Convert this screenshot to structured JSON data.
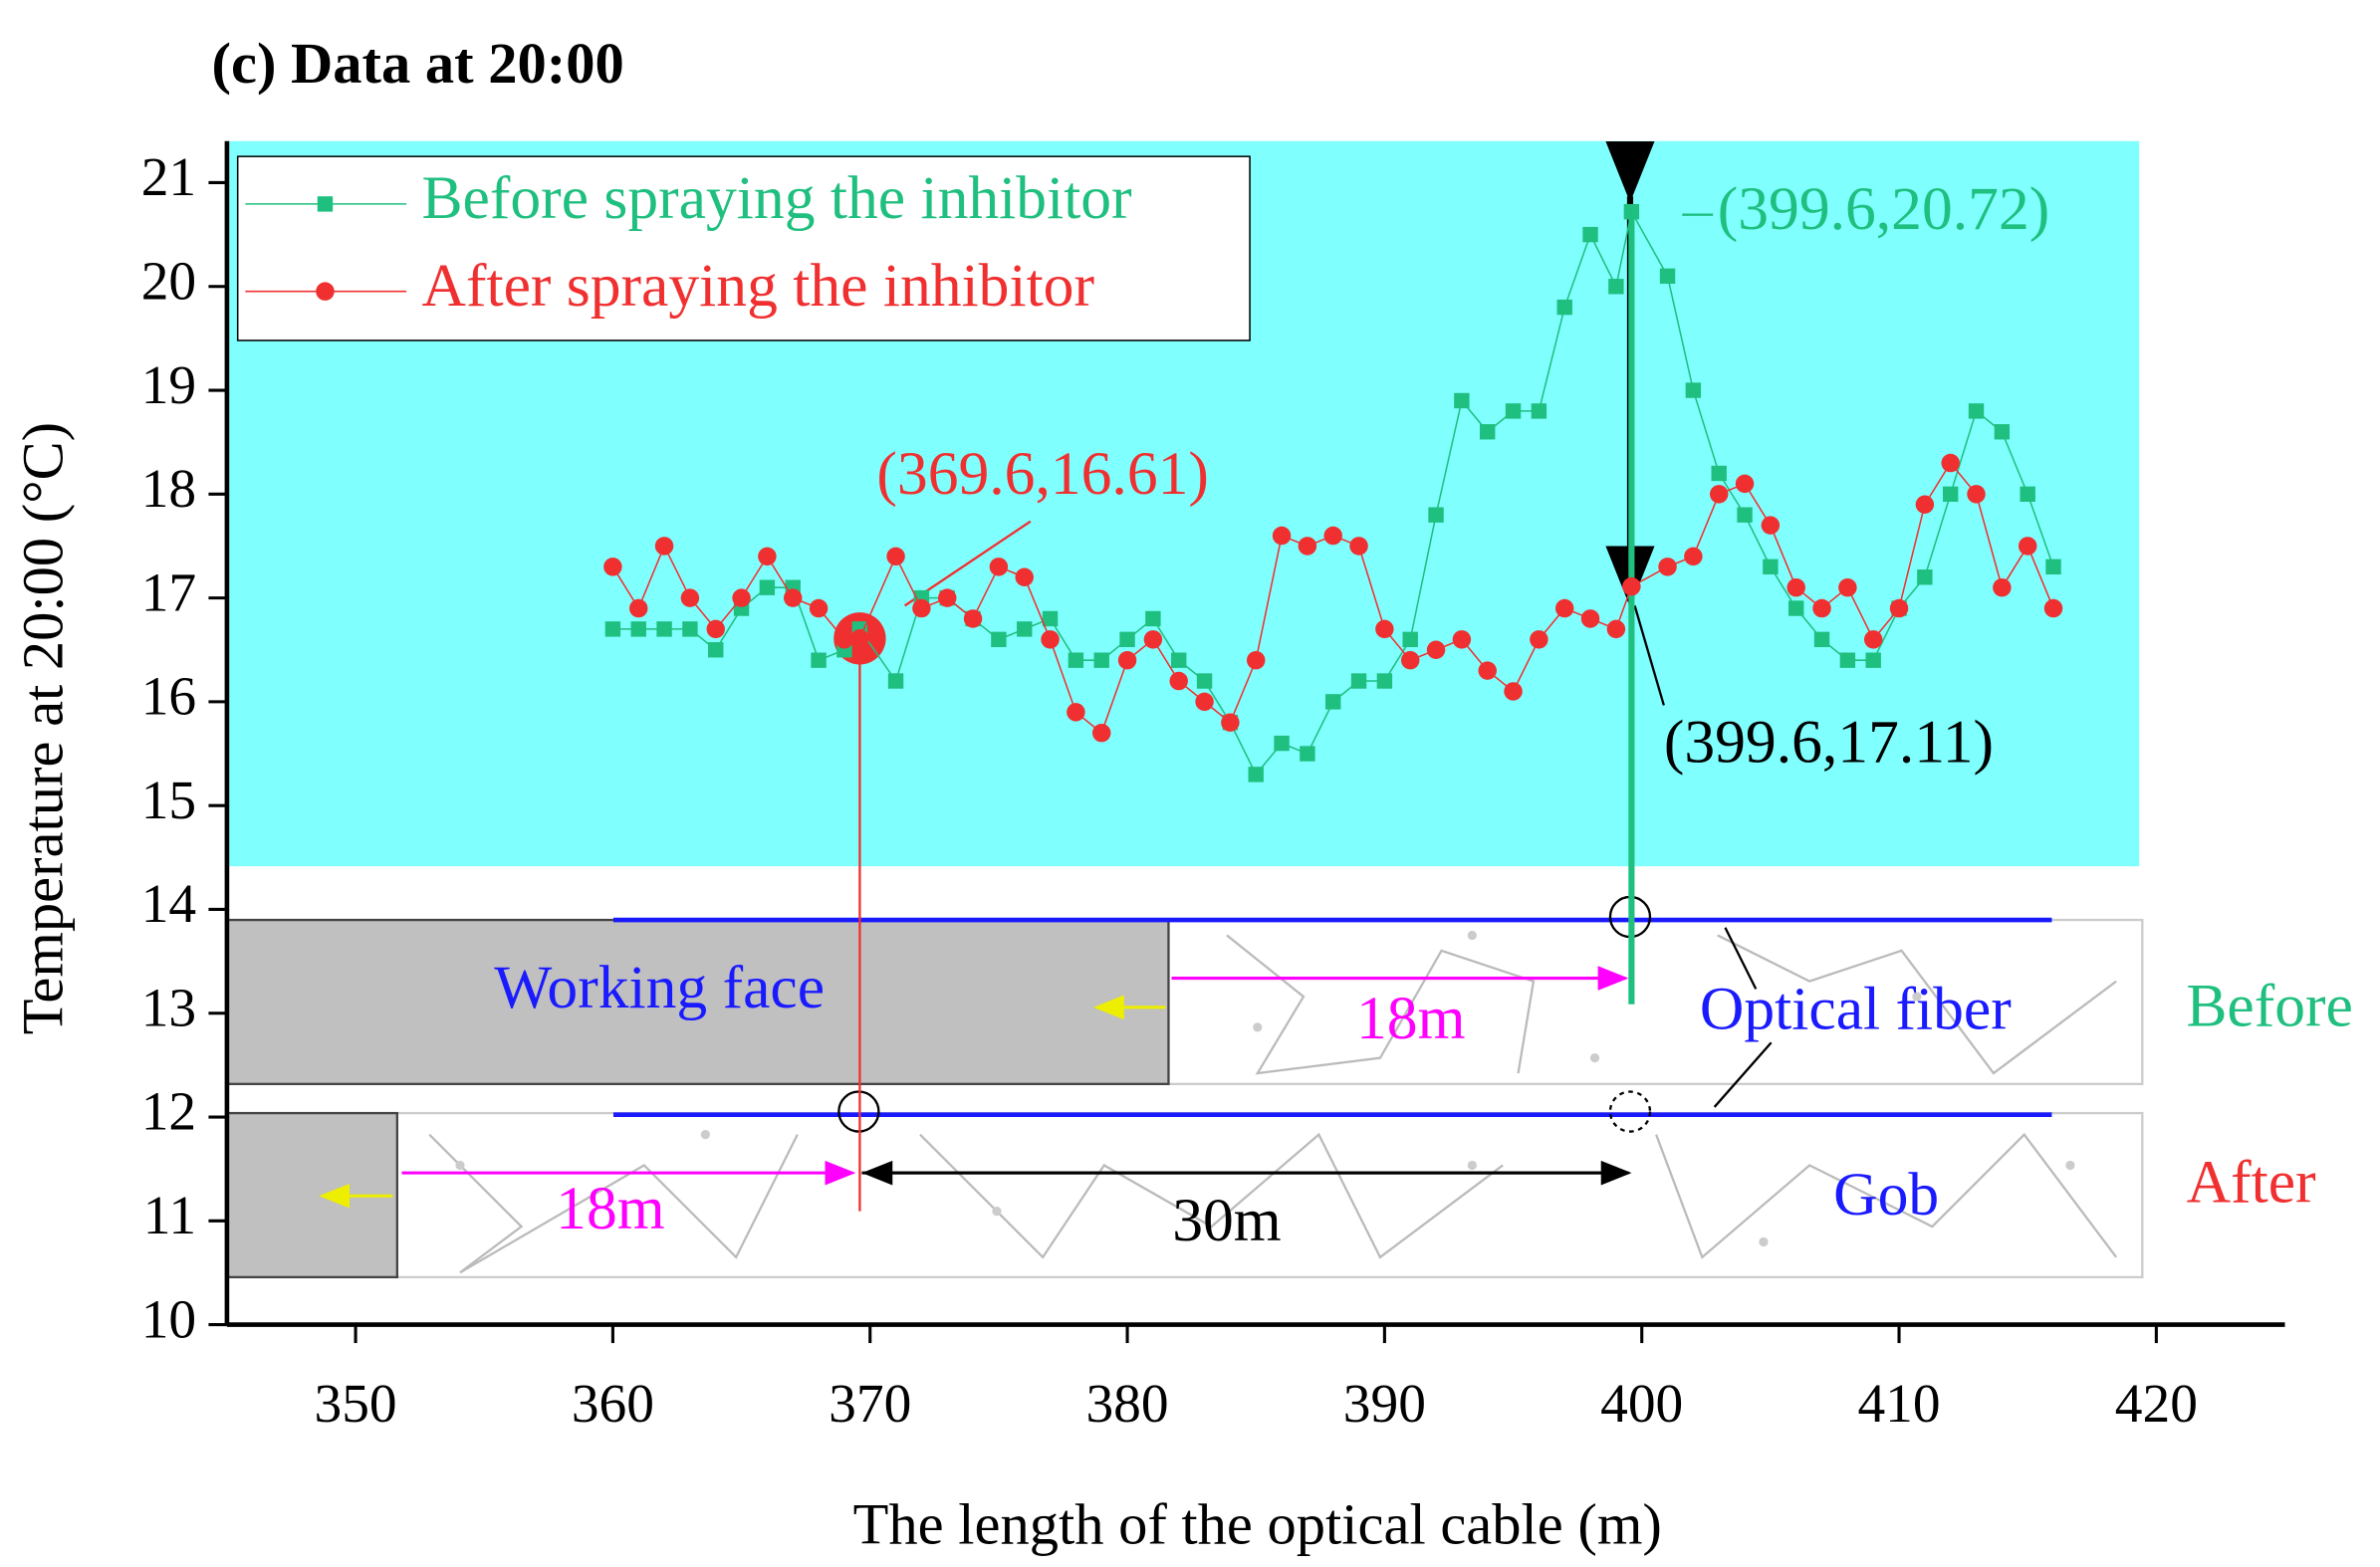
{
  "chart_data": {
    "type": "line",
    "title": "(c) Data at 20:00",
    "x_label": "The length of the optical cable (m)",
    "y_label": "Temperature at 20:00 (°C)",
    "x": [
      360,
      361,
      362,
      363,
      364,
      365,
      366,
      367,
      368,
      369,
      369.6,
      371,
      372,
      373,
      374,
      375,
      376,
      377,
      378,
      379,
      380,
      381,
      382,
      383,
      384,
      385,
      386,
      387,
      388,
      389,
      390,
      391,
      392,
      393,
      394,
      395,
      396,
      397,
      398,
      399,
      399.6,
      401,
      402,
      403,
      404,
      405,
      406,
      407,
      408,
      409,
      410,
      411,
      412,
      413,
      414,
      415,
      416
    ],
    "series": [
      {
        "name": "Before spraying the inhibitor",
        "color": "#1fbf7f",
        "marker": "square",
        "values": [
          16.7,
          16.7,
          16.7,
          16.7,
          16.5,
          16.9,
          17.1,
          17.1,
          16.4,
          16.5,
          16.7,
          16.2,
          17.0,
          17.0,
          16.8,
          16.6,
          16.7,
          16.8,
          16.4,
          16.4,
          16.6,
          16.8,
          16.4,
          16.2,
          15.8,
          15.3,
          15.6,
          15.5,
          16.0,
          16.2,
          16.2,
          16.6,
          17.8,
          18.9,
          18.6,
          18.8,
          18.8,
          19.8,
          20.5,
          20.0,
          20.72,
          20.1,
          19.0,
          18.2,
          17.8,
          17.3,
          16.9,
          16.6,
          16.4,
          16.4,
          16.9,
          17.2,
          18.0,
          18.8,
          18.6,
          18.0,
          17.3
        ]
      },
      {
        "name": "After spraying the inhibitor",
        "color": "#f03030",
        "marker": "circle",
        "values": [
          17.3,
          16.9,
          17.5,
          17.0,
          16.7,
          17.0,
          17.4,
          17.0,
          16.9,
          16.6,
          16.61,
          17.4,
          16.9,
          17.0,
          16.8,
          17.3,
          17.2,
          16.6,
          15.9,
          15.7,
          16.4,
          16.6,
          16.2,
          16.0,
          15.8,
          16.4,
          17.6,
          17.5,
          17.6,
          17.5,
          16.7,
          16.4,
          16.5,
          16.6,
          16.3,
          16.1,
          16.6,
          16.9,
          16.8,
          16.7,
          17.11,
          17.3,
          17.4,
          18.0,
          18.1,
          17.7,
          17.1,
          16.9,
          17.1,
          16.6,
          16.9,
          17.9,
          18.3,
          18.0,
          17.1,
          17.5,
          16.9
        ]
      }
    ],
    "xlim": [
      345,
      425
    ],
    "xticks": [
      350,
      360,
      370,
      380,
      390,
      400,
      410,
      420
    ],
    "ylim": [
      10,
      21.4
    ],
    "yticks": [
      10,
      11,
      12,
      13,
      14,
      15,
      16,
      17,
      18,
      19,
      20,
      21
    ],
    "legend": "upper left",
    "plot_background": "#80ffff",
    "annotations": [
      "(369.6,16.61)",
      "(399.6,20.72)",
      "(399.6,17.11)",
      "Working face",
      "18m",
      "Optical fiber",
      "Before",
      "18m",
      "30m",
      "Gob",
      "After"
    ]
  }
}
